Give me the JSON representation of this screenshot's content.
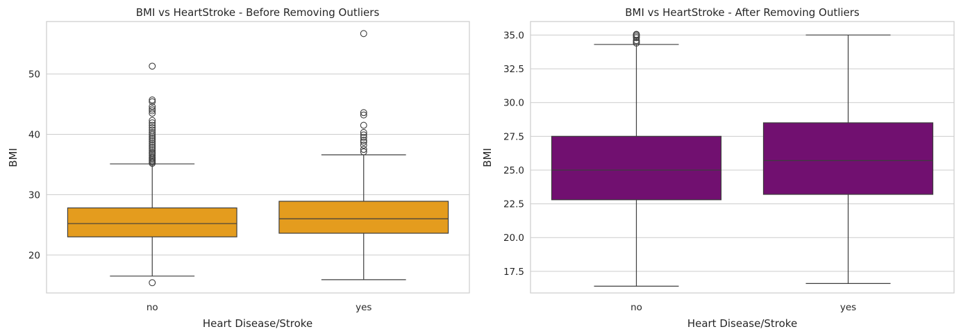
{
  "chart_data": [
    {
      "type": "box",
      "title": "BMI vs HeartStroke - Before Removing Outliers",
      "xlabel": "Heart Disease/Stroke",
      "ylabel": "BMI",
      "ylim": [
        13.7,
        58.7
      ],
      "yticks": [
        "20",
        "30",
        "40",
        "50"
      ],
      "ytick_values": [
        20,
        30,
        40,
        50
      ],
      "grid": true,
      "box_color": "#e49c1e",
      "categories": [
        "no",
        "yes"
      ],
      "boxes": [
        {
          "category": "no",
          "whisker_low": 16.5,
          "q1": 23.0,
          "median": 25.2,
          "q3": 27.8,
          "whisker_high": 35.1,
          "outliers": [
            15.4,
            35.2,
            35.4,
            35.6,
            35.8,
            36.0,
            36.2,
            36.5,
            36.8,
            37.0,
            37.3,
            37.6,
            37.9,
            38.2,
            38.5,
            38.8,
            39.1,
            39.4,
            39.7,
            40.0,
            40.3,
            40.7,
            41.1,
            41.5,
            41.9,
            42.3,
            43.5,
            43.9,
            44.2,
            44.6,
            45.4,
            45.7,
            51.3
          ]
        },
        {
          "category": "yes",
          "whisker_low": 15.9,
          "q1": 23.6,
          "median": 26.0,
          "q3": 28.9,
          "whisker_high": 36.6,
          "outliers": [
            37.1,
            37.5,
            38.2,
            38.7,
            39.0,
            39.5,
            39.9,
            40.3,
            41.5,
            43.2,
            43.6,
            56.7
          ]
        }
      ]
    },
    {
      "type": "box",
      "title": "BMI vs HeartStroke - After Removing Outliers",
      "xlabel": "Heart Disease/Stroke",
      "ylabel": "BMI",
      "ylim": [
        15.9,
        36.0
      ],
      "yticks": [
        "17.5",
        "20.0",
        "22.5",
        "25.0",
        "27.5",
        "30.0",
        "32.5",
        "35.0"
      ],
      "ytick_values": [
        17.5,
        20.0,
        22.5,
        25.0,
        27.5,
        30.0,
        32.5,
        35.0
      ],
      "grid": true,
      "box_color": "#711070",
      "categories": [
        "no",
        "yes"
      ],
      "boxes": [
        {
          "category": "no",
          "whisker_low": 16.4,
          "q1": 22.8,
          "median": 25.0,
          "q3": 27.5,
          "whisker_high": 34.3,
          "outliers": [
            34.4,
            34.5,
            34.6,
            34.8,
            34.9,
            35.0,
            35.05
          ]
        },
        {
          "category": "yes",
          "whisker_low": 16.6,
          "q1": 23.2,
          "median": 25.7,
          "q3": 28.5,
          "whisker_high": 35.0,
          "outliers": []
        }
      ]
    }
  ]
}
